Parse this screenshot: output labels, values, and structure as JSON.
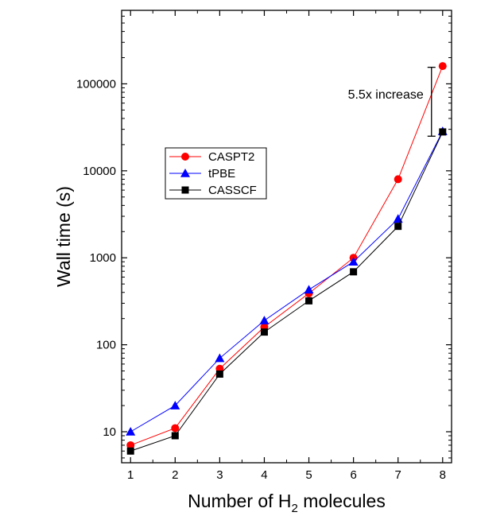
{
  "chart_data": {
    "type": "line",
    "title": "",
    "xlabel": "Number of H",
    "xlabel_sub": "2",
    "xlabel_suffix": " molecules",
    "ylabel": "Wall time (s)",
    "y_scale": "log",
    "xlim": [
      0.8,
      8.2
    ],
    "ylim": [
      4.4,
      700000
    ],
    "x_ticks": [
      1,
      2,
      3,
      4,
      5,
      6,
      7,
      8
    ],
    "y_ticks": [
      10,
      100,
      1000,
      10000,
      100000
    ],
    "y_tick_labels": [
      "10",
      "100",
      "1000",
      "10000",
      "100000"
    ],
    "grid": false,
    "legend_position": "upper-left",
    "series": [
      {
        "name": "CASPT2",
        "color": "#ff0000",
        "marker": "circle",
        "x": [
          1,
          2,
          3,
          4,
          5,
          6,
          7,
          8
        ],
        "values": [
          7,
          11,
          53,
          160,
          390,
          1000,
          8000,
          160000
        ]
      },
      {
        "name": "tPBE",
        "color": "#0000ff",
        "marker": "triangle",
        "x": [
          1,
          2,
          3,
          4,
          5,
          6,
          7,
          8
        ],
        "values": [
          10,
          20,
          70,
          190,
          430,
          900,
          2800,
          28500
        ]
      },
      {
        "name": "CASSCF",
        "color": "#000000",
        "marker": "square",
        "x": [
          1,
          2,
          3,
          4,
          5,
          6,
          7,
          8
        ],
        "values": [
          6,
          9,
          46,
          140,
          320,
          690,
          2300,
          28000
        ]
      }
    ],
    "annotation": {
      "text": "5.5x increase",
      "bar_x": 7.75,
      "bar_y_low": 25000,
      "bar_y_high": 155000
    }
  }
}
